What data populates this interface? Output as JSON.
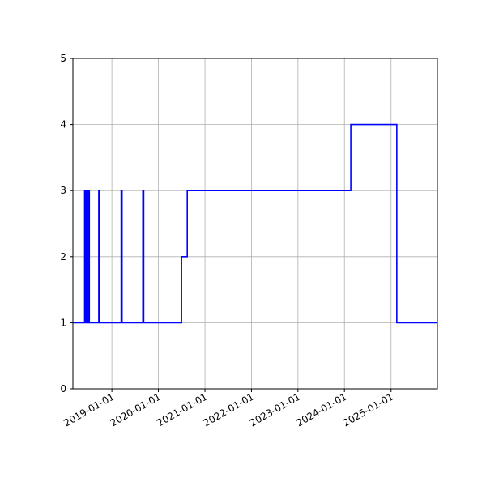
{
  "chart_data": {
    "type": "line",
    "title": "",
    "xlabel": "",
    "ylabel": "",
    "x_axis_type": "date",
    "xlim": [
      "2018-03-01",
      "2025-12-31"
    ],
    "ylim": [
      0,
      5
    ],
    "grid": true,
    "line_color": "#0000ff",
    "y_ticks": [
      0,
      1,
      2,
      3,
      4,
      5
    ],
    "x_ticks": [
      "2019-01-01",
      "2020-01-01",
      "2021-01-01",
      "2022-01-01",
      "2023-01-01",
      "2024-01-01",
      "2025-01-01"
    ],
    "series": [
      {
        "step": "post",
        "points": [
          [
            "2018-03-01",
            1
          ],
          [
            "2018-06-01",
            3
          ],
          [
            "2018-06-08",
            1
          ],
          [
            "2018-06-15",
            3
          ],
          [
            "2018-06-22",
            1
          ],
          [
            "2018-07-01",
            3
          ],
          [
            "2018-07-08",
            1
          ],
          [
            "2018-09-20",
            3
          ],
          [
            "2018-09-27",
            1
          ],
          [
            "2019-03-15",
            3
          ],
          [
            "2019-03-22",
            1
          ],
          [
            "2019-09-01",
            3
          ],
          [
            "2019-09-08",
            1
          ],
          [
            "2020-07-01",
            2
          ],
          [
            "2020-08-15",
            3
          ],
          [
            "2024-02-20",
            4
          ],
          [
            "2025-02-15",
            1
          ],
          [
            "2025-12-31",
            1
          ]
        ]
      }
    ]
  }
}
